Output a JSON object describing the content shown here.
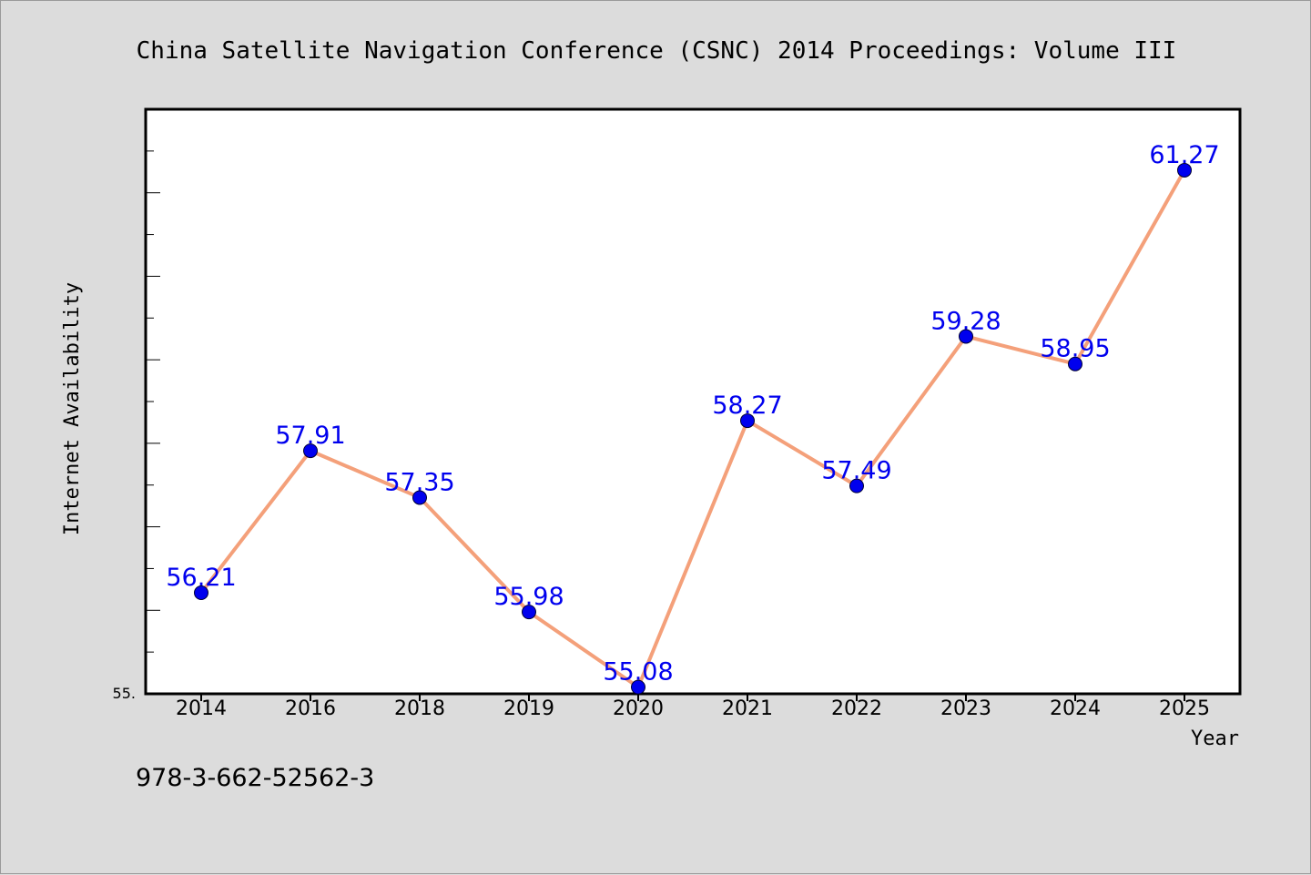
{
  "chart_data": {
    "type": "line",
    "title": "China Satellite Navigation Conference (CSNC) 2014 Proceedings: Volume III",
    "xlabel": "Year",
    "ylabel": "Internet Availability",
    "categories": [
      "2014",
      "2016",
      "2018",
      "2019",
      "2020",
      "2021",
      "2022",
      "2023",
      "2024",
      "2025"
    ],
    "series": [
      {
        "values": [
          56.21,
          57.91,
          57.35,
          55.98,
          55.08,
          58.27,
          57.49,
          59.28,
          58.95,
          61.27
        ],
        "labels": [
          "56.21",
          "57.91",
          "57.35",
          "55.98",
          "55.08",
          "58.27",
          "57.49",
          "59.28",
          "58.95",
          "61.27"
        ]
      }
    ],
    "ylim": [
      55,
      62
    ],
    "y_tick_label": "55.",
    "grid": false,
    "legend": "none",
    "colors": {
      "line": "#f4a07a",
      "marker": "#0000ee",
      "label": "#0000ee",
      "plot_bg": "#ffffff",
      "page_bg": "#dcdcdc"
    }
  },
  "footnote": "978-3-662-52562-3"
}
